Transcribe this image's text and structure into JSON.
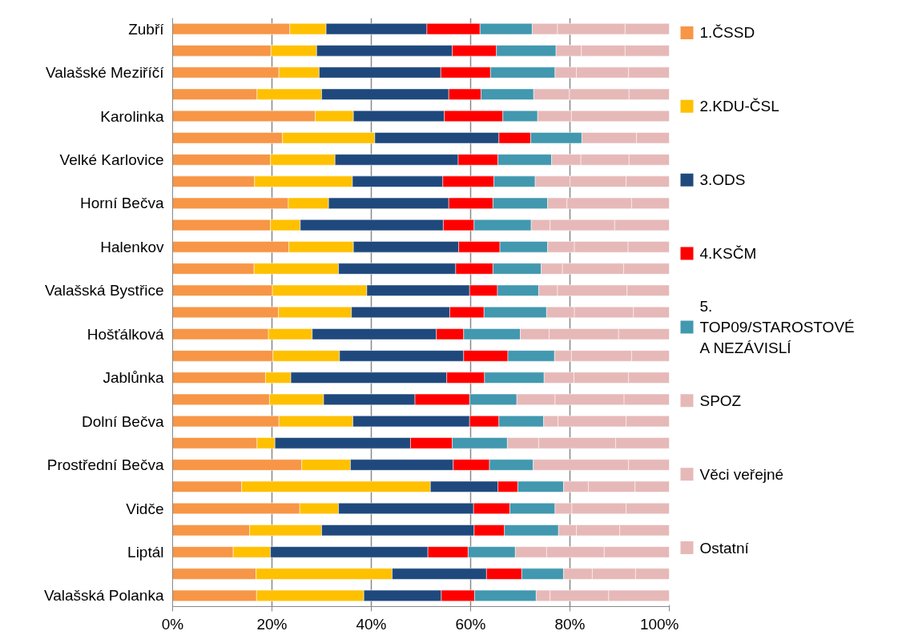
{
  "chart_data": {
    "type": "bar",
    "orientation": "horizontal",
    "stacked": true,
    "categories": [
      "Zubří",
      null,
      "Valašské Meziříčí",
      null,
      "Karolinka",
      null,
      "Velké Karlovice",
      null,
      "Horní Bečva",
      null,
      "Halenkov",
      null,
      "Valašská Bystřice",
      null,
      "Hošťálková",
      null,
      "Jablůnka",
      null,
      "Dolní Bečva",
      null,
      "Prostřední Bečva",
      null,
      "Vidče",
      null,
      "Liptál",
      null,
      "Valašská Polanka"
    ],
    "series": [
      {
        "name": "1.ČSSD",
        "color": "#f79646",
        "values": [
          23.6,
          19.8,
          21.4,
          17.0,
          28.7,
          22.1,
          19.7,
          16.5,
          23.3,
          19.7,
          23.4,
          16.4,
          20.1,
          21.3,
          19.3,
          20.2,
          18.7,
          19.5,
          21.4,
          17.0,
          26.0,
          13.9,
          25.6,
          15.5,
          12.2,
          16.8,
          16.9
        ]
      },
      {
        "name": "2.KDU-ČSL",
        "color": "#ffc000",
        "values": [
          7.3,
          9.2,
          8.1,
          13.0,
          7.7,
          18.6,
          13.0,
          19.7,
          8.1,
          6.0,
          13.0,
          17.0,
          19.0,
          14.7,
          8.8,
          13.4,
          5.1,
          10.9,
          14.9,
          3.6,
          9.8,
          38.0,
          7.8,
          14.5,
          7.5,
          27.4,
          21.6
        ]
      },
      {
        "name": "3.ODS",
        "color": "#1f497d",
        "values": [
          20.3,
          27.3,
          24.5,
          25.6,
          18.3,
          25.0,
          24.8,
          18.2,
          24.2,
          28.8,
          21.2,
          23.6,
          20.7,
          19.8,
          25.0,
          25.0,
          31.4,
          18.4,
          23.5,
          27.3,
          20.7,
          13.6,
          27.2,
          30.7,
          31.7,
          19.0,
          15.6
        ]
      },
      {
        "name": "4.KSČM",
        "color": "#ff0000",
        "values": [
          10.7,
          8.9,
          10.0,
          6.5,
          11.8,
          6.4,
          8.0,
          10.3,
          8.9,
          6.2,
          8.3,
          7.5,
          5.6,
          6.9,
          5.5,
          8.9,
          7.6,
          11.0,
          5.9,
          8.4,
          7.3,
          4.0,
          7.3,
          6.1,
          8.1,
          7.1,
          6.7
        ]
      },
      {
        "name": "5.\nTOP09/STAROSTOVÉ\nA NEZÁVISLÍ",
        "color": "#4198af",
        "values": [
          10.5,
          12.0,
          13.0,
          10.6,
          7.0,
          10.3,
          10.8,
          8.3,
          11.0,
          11.5,
          9.6,
          9.7,
          8.3,
          12.6,
          11.4,
          9.4,
          12.0,
          9.5,
          9.0,
          11.1,
          8.8,
          9.2,
          9.1,
          10.9,
          9.5,
          8.4,
          12.4
        ]
      },
      {
        "name": "SPOZ",
        "color": "#e6b9b8",
        "values": [
          5.1,
          5.1,
          4.3,
          7.2,
          6.8,
          11.0,
          5.9,
          7.0,
          3.9,
          3.8,
          5.4,
          4.3,
          3.8,
          5.6,
          5.8,
          3.4,
          6.0,
          7.7,
          2.9,
          6.3,
          19.2,
          5.0,
          3.4,
          3.6,
          6.3,
          5.8,
          2.8
        ]
      },
      {
        "name": "Věci veřejné",
        "color": "#e6b9b8",
        "values": [
          13.6,
          8.8,
          10.5,
          12.0,
          19.7,
          6.6,
          9.7,
          11.3,
          13.0,
          13.0,
          10.8,
          12.3,
          14.0,
          11.9,
          14.0,
          12.1,
          11.0,
          13.9,
          13.7,
          15.5,
          8.2,
          9.4,
          10.9,
          8.7,
          11.6,
          8.7,
          11.8
        ]
      },
      {
        "name": "Ostatní",
        "color": "#e6b9b8",
        "values": [
          8.9,
          8.9,
          8.2,
          8.1,
          null,
          null,
          8.1,
          8.7,
          7.6,
          11.0,
          8.3,
          9.2,
          8.5,
          7.2,
          10.2,
          7.6,
          8.2,
          9.1,
          8.7,
          10.8,
          null,
          6.9,
          8.7,
          10.0,
          13.1,
          6.8,
          12.2
        ]
      }
    ],
    "xlim": [
      0,
      100
    ],
    "xticks": [
      {
        "value": 0,
        "label": "0%"
      },
      {
        "value": 20,
        "label": "20%"
      },
      {
        "value": 40,
        "label": "40%"
      },
      {
        "value": 60,
        "label": "60%"
      },
      {
        "value": 80,
        "label": "80%"
      },
      {
        "value": 100,
        "label": "100%"
      }
    ],
    "grid": "x",
    "legend": "right"
  }
}
